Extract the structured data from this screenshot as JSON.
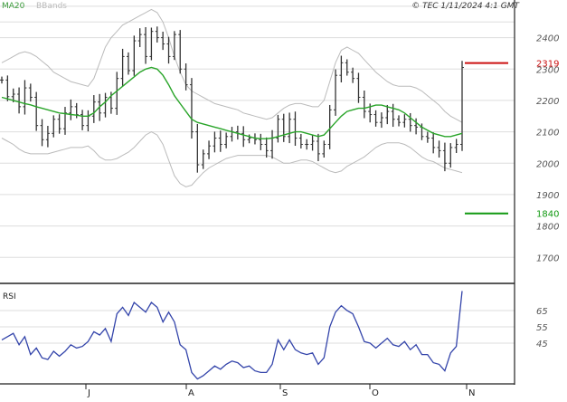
{
  "header": {
    "legend_ma": "MA20",
    "legend_bb": "BBands",
    "copyright": "© TEC 1/11/2024 4:1 GMT"
  },
  "colors": {
    "price": "#333333",
    "ma": "#2aa52a",
    "bands": "#bbbbbb",
    "rsi": "#3344aa",
    "resistance": "#cc1111",
    "support": "#119911",
    "grid": "#dddddd"
  },
  "chart_data": [
    {
      "type": "ohlc",
      "title": "",
      "x_ticks": [
        "J",
        "A",
        "S",
        "O",
        "N"
      ],
      "y_ticks": [
        1700,
        1800,
        1900,
        2000,
        2100,
        2200,
        2300,
        2400
      ],
      "ylim": [
        1620,
        2520
      ],
      "grid": true,
      "levels": [
        {
          "label": "2319",
          "value": 2319,
          "kind": "resistance"
        },
        {
          "label": "1840",
          "value": 1840,
          "kind": "support"
        }
      ],
      "series": [
        {
          "name": "MA20",
          "kind": "ma"
        },
        {
          "name": "BBands",
          "kind": "bands"
        }
      ],
      "close": [
        2265,
        2212,
        2220,
        2180,
        2240,
        2210,
        2120,
        2075,
        2095,
        2140,
        2110,
        2160,
        2180,
        2155,
        2120,
        2150,
        2195,
        2160,
        2210,
        2175,
        2270,
        2340,
        2295,
        2390,
        2410,
        2340,
        2420,
        2400,
        2380,
        2340,
        2410,
        2300,
        2250,
        2100,
        1995,
        2030,
        2055,
        2080,
        2060,
        2085,
        2100,
        2095,
        2075,
        2080,
        2075,
        2060,
        2040,
        2080,
        2140,
        2085,
        2140,
        2080,
        2060,
        2060,
        2070,
        2030,
        2060,
        2170,
        2280,
        2320,
        2290,
        2270,
        2210,
        2165,
        2155,
        2130,
        2145,
        2165,
        2140,
        2130,
        2140,
        2120,
        2115,
        2085,
        2080,
        2050,
        2040,
        2000,
        2050,
        2060,
        2305
      ],
      "ma": [
        2210,
        2205,
        2200,
        2195,
        2190,
        2186,
        2180,
        2175,
        2170,
        2165,
        2160,
        2158,
        2155,
        2153,
        2150,
        2150,
        2160,
        2180,
        2195,
        2215,
        2230,
        2245,
        2260,
        2275,
        2290,
        2300,
        2305,
        2300,
        2280,
        2250,
        2215,
        2190,
        2165,
        2140,
        2130,
        2125,
        2120,
        2115,
        2110,
        2105,
        2100,
        2095,
        2090,
        2085,
        2080,
        2078,
        2078,
        2080,
        2085,
        2090,
        2095,
        2100,
        2100,
        2095,
        2090,
        2085,
        2090,
        2110,
        2130,
        2150,
        2165,
        2170,
        2175,
        2175,
        2180,
        2185,
        2185,
        2180,
        2175,
        2170,
        2160,
        2145,
        2130,
        2115,
        2105,
        2095,
        2090,
        2085,
        2085,
        2090,
        2095
      ],
      "bb_upper": [
        2320,
        2330,
        2340,
        2350,
        2355,
        2350,
        2340,
        2325,
        2310,
        2290,
        2280,
        2270,
        2260,
        2255,
        2250,
        2245,
        2270,
        2320,
        2370,
        2400,
        2420,
        2440,
        2450,
        2460,
        2470,
        2480,
        2490,
        2480,
        2450,
        2400,
        2340,
        2290,
        2250,
        2230,
        2220,
        2210,
        2200,
        2190,
        2185,
        2180,
        2175,
        2170,
        2160,
        2155,
        2150,
        2145,
        2140,
        2145,
        2160,
        2175,
        2185,
        2190,
        2190,
        2185,
        2180,
        2180,
        2200,
        2260,
        2320,
        2360,
        2370,
        2360,
        2350,
        2330,
        2310,
        2290,
        2275,
        2260,
        2250,
        2245,
        2245,
        2245,
        2240,
        2230,
        2215,
        2200,
        2185,
        2165,
        2150,
        2140,
        2130
      ],
      "bb_lower": [
        2080,
        2070,
        2060,
        2045,
        2035,
        2030,
        2030,
        2030,
        2030,
        2035,
        2040,
        2045,
        2050,
        2050,
        2050,
        2055,
        2040,
        2020,
        2010,
        2010,
        2015,
        2025,
        2035,
        2050,
        2070,
        2090,
        2100,
        2090,
        2060,
        2010,
        1960,
        1935,
        1925,
        1930,
        1950,
        1970,
        1985,
        1995,
        2005,
        2015,
        2020,
        2025,
        2025,
        2025,
        2025,
        2025,
        2025,
        2020,
        2010,
        2000,
        2000,
        2005,
        2010,
        2010,
        2005,
        1995,
        1985,
        1975,
        1970,
        1975,
        1990,
        2000,
        2010,
        2020,
        2035,
        2050,
        2060,
        2065,
        2065,
        2065,
        2060,
        2050,
        2035,
        2020,
        2010,
        2005,
        1995,
        1985,
        1980,
        1975,
        1970
      ]
    },
    {
      "type": "line",
      "title": "RSI",
      "y_ticks": [
        45,
        55,
        65
      ],
      "ylim": [
        20,
        80
      ],
      "grid": true,
      "series": [
        {
          "name": "RSI",
          "values": [
            47,
            49,
            51,
            44,
            49,
            38,
            42,
            36,
            35,
            40,
            37,
            40,
            44,
            42,
            43,
            46,
            52,
            50,
            54,
            46,
            63,
            67,
            62,
            70,
            67,
            64,
            70,
            67,
            58,
            64,
            58,
            44,
            41,
            27,
            23,
            25,
            28,
            31,
            29,
            32,
            34,
            33,
            30,
            31,
            28,
            27,
            27,
            32,
            47,
            41,
            47,
            41,
            39,
            38,
            39,
            32,
            36,
            55,
            64,
            68,
            65,
            63,
            55,
            46,
            45,
            42,
            45,
            48,
            44,
            43,
            46,
            41,
            44,
            38,
            38,
            33,
            32,
            28,
            39,
            43,
            77
          ]
        }
      ]
    }
  ]
}
